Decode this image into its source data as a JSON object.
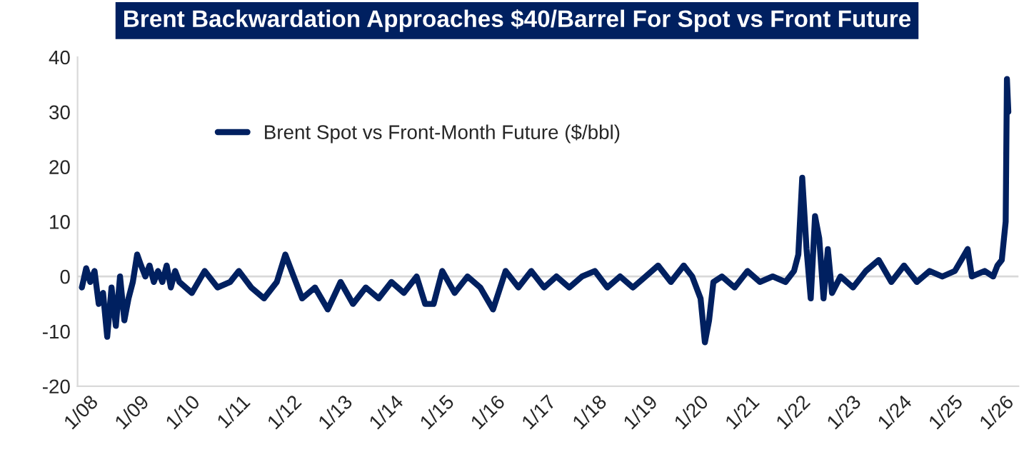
{
  "chart_data": {
    "type": "line",
    "title": "Brent Backwardation Approaches $40/Barrel For Spot vs Front Future",
    "x": [
      "2008-01",
      "2008-02",
      "2008-03",
      "2008-04",
      "2008-05",
      "2008-06",
      "2008-07",
      "2008-08",
      "2008-09",
      "2008-10",
      "2008-11",
      "2008-12",
      "2009-01",
      "2009-02",
      "2009-03",
      "2009-04",
      "2009-05",
      "2009-06",
      "2009-07",
      "2009-08",
      "2009-09",
      "2009-10",
      "2009-11",
      "2009-12",
      "2010-03",
      "2010-06",
      "2010-09",
      "2010-12",
      "2011-02",
      "2011-05",
      "2011-08",
      "2011-11",
      "2012-01",
      "2012-03",
      "2012-05",
      "2012-08",
      "2012-11",
      "2013-02",
      "2013-05",
      "2013-08",
      "2013-11",
      "2014-02",
      "2014-05",
      "2014-08",
      "2014-10",
      "2014-12",
      "2015-02",
      "2015-05",
      "2015-08",
      "2015-11",
      "2016-02",
      "2016-05",
      "2016-08",
      "2016-11",
      "2017-02",
      "2017-05",
      "2017-08",
      "2017-11",
      "2018-02",
      "2018-05",
      "2018-08",
      "2018-11",
      "2019-02",
      "2019-05",
      "2019-08",
      "2019-11",
      "2020-01",
      "2020-03",
      "2020-04",
      "2020-05",
      "2020-06",
      "2020-08",
      "2020-11",
      "2021-02",
      "2021-05",
      "2021-08",
      "2021-11",
      "2022-01",
      "2022-02",
      "2022-03",
      "2022-04",
      "2022-05",
      "2022-06",
      "2022-07",
      "2022-08",
      "2022-09",
      "2022-10",
      "2022-12",
      "2023-03",
      "2023-06",
      "2023-09",
      "2023-12",
      "2024-03",
      "2024-06",
      "2024-09",
      "2024-12",
      "2025-03",
      "2025-06",
      "2025-07",
      "2025-10",
      "2025-12",
      "2026-01",
      "2026-02",
      "2026-03",
      "2026-03-10",
      "2026-03-20"
    ],
    "series": [
      {
        "name": "Brent Spot vs Front-Month Future ($/bbl)",
        "color": "#002060",
        "values": [
          -2,
          1.5,
          -1,
          1,
          -5,
          -3,
          -11,
          -2,
          -9,
          0,
          -8,
          -4,
          -1,
          4,
          2,
          0,
          2,
          -1,
          1,
          -1,
          2,
          -2,
          1,
          -1,
          -3,
          1,
          -2,
          -1,
          1,
          -2,
          -4,
          -1,
          4,
          0,
          -4,
          -2,
          -6,
          -1,
          -5,
          -2,
          -4,
          -1,
          -3,
          0,
          -5,
          -5,
          1,
          -3,
          0,
          -2,
          -6,
          1,
          -2,
          1,
          -2,
          0,
          -2,
          0,
          1,
          -2,
          0,
          -2,
          0,
          2,
          -1,
          2,
          0,
          -4,
          -12,
          -8,
          -1,
          0,
          -2,
          1,
          -1,
          0,
          -1,
          1,
          4,
          18,
          5,
          -4,
          11,
          7,
          -4,
          5,
          -3,
          0,
          -2,
          1,
          3,
          -1,
          2,
          -1,
          1,
          0,
          1,
          5,
          0,
          1,
          0,
          2,
          3,
          10,
          36,
          30
        ]
      }
    ],
    "xlim": [
      "2007-12-01",
      "2026-06-01"
    ],
    "xticks": [
      {
        "value": "2008-01-01",
        "label": "1/08"
      },
      {
        "value": "2009-01-01",
        "label": "1/09"
      },
      {
        "value": "2010-01-01",
        "label": "1/10"
      },
      {
        "value": "2011-01-01",
        "label": "1/11"
      },
      {
        "value": "2012-01-01",
        "label": "1/12"
      },
      {
        "value": "2013-01-01",
        "label": "1/13"
      },
      {
        "value": "2014-01-01",
        "label": "1/14"
      },
      {
        "value": "2015-01-01",
        "label": "1/15"
      },
      {
        "value": "2016-01-01",
        "label": "1/16"
      },
      {
        "value": "2017-01-01",
        "label": "1/17"
      },
      {
        "value": "2018-01-01",
        "label": "1/18"
      },
      {
        "value": "2019-01-01",
        "label": "1/19"
      },
      {
        "value": "2020-01-01",
        "label": "1/20"
      },
      {
        "value": "2021-01-01",
        "label": "1/21"
      },
      {
        "value": "2022-01-01",
        "label": "1/22"
      },
      {
        "value": "2023-01-01",
        "label": "1/23"
      },
      {
        "value": "2024-01-01",
        "label": "1/24"
      },
      {
        "value": "2025-01-01",
        "label": "1/25"
      },
      {
        "value": "2026-01-01",
        "label": "1/26"
      }
    ],
    "ylim": [
      -20,
      40
    ],
    "yticks": [
      -20,
      -10,
      0,
      10,
      20,
      30,
      40
    ],
    "ref_lines": [
      {
        "axis": "y",
        "value": 0,
        "color": "#d9d9d9"
      }
    ],
    "grid": false,
    "legend": "top left",
    "marker": "none",
    "line_style": "solid"
  }
}
